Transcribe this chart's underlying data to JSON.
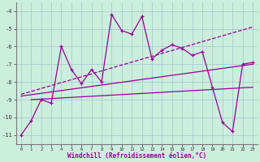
{
  "xlabel": "Windchill (Refroidissement éolien,°C)",
  "background_color": "#cceedd",
  "grid_color": "#aacccc",
  "line_color": "#990099",
  "x_values": [
    0,
    1,
    2,
    3,
    4,
    5,
    6,
    7,
    8,
    9,
    10,
    11,
    12,
    13,
    14,
    15,
    16,
    17,
    18,
    19,
    20,
    21,
    22,
    23
  ],
  "series1": [
    -11.0,
    -10.2,
    -9.0,
    -9.2,
    -6.0,
    -7.3,
    -8.1,
    -7.3,
    -8.0,
    -4.2,
    -5.1,
    -5.3,
    -4.3,
    -6.7,
    -6.2,
    -5.9,
    -6.1,
    -6.5,
    -6.3,
    -8.3,
    -10.3,
    -10.8,
    -7.0,
    -6.9
  ],
  "line1_x": [
    0,
    23
  ],
  "line1_y": [
    -8.7,
    -4.9
  ],
  "line2_x": [
    0,
    23
  ],
  "line2_y": [
    -8.8,
    -7.0
  ],
  "line3_x": [
    1,
    23
  ],
  "line3_y": [
    -9.0,
    -8.3
  ],
  "ylim": [
    -11.5,
    -3.5
  ],
  "xlim": [
    -0.5,
    23.5
  ],
  "yticks": [
    -11,
    -10,
    -9,
    -8,
    -7,
    -6,
    -5,
    -4
  ],
  "xticks": [
    0,
    1,
    2,
    3,
    4,
    5,
    6,
    7,
    8,
    9,
    10,
    11,
    12,
    13,
    14,
    15,
    16,
    17,
    18,
    19,
    20,
    21,
    22,
    23
  ]
}
